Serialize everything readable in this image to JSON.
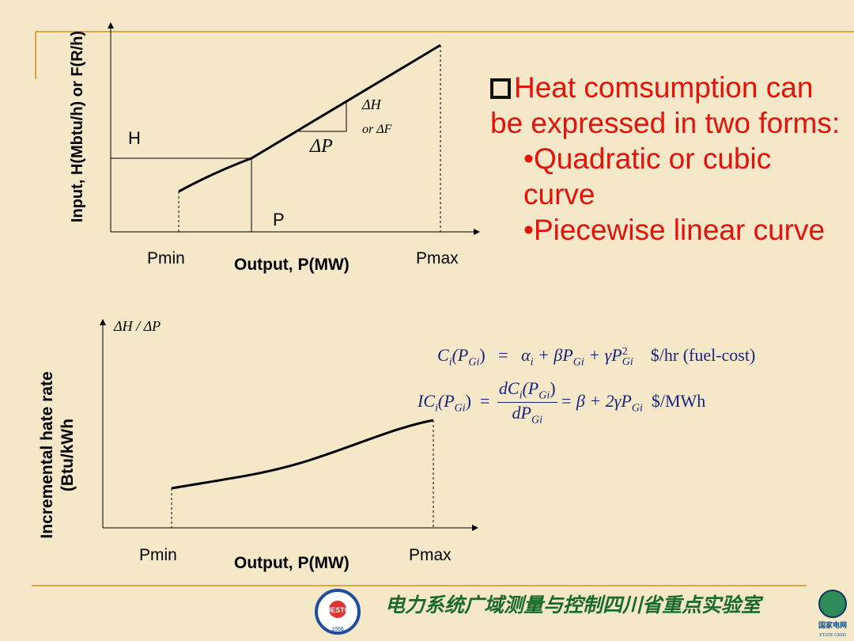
{
  "top_chart": {
    "y_label": "Input, H(Mbtu/h) or F(R/h)",
    "h_label": "H",
    "p_label": "P",
    "dh_label": "ΔH",
    "df_label": "or ΔF",
    "dp_label": "ΔP",
    "pmin": "Pmin",
    "x_label": "Output, P(MW)",
    "pmax": "Pmax"
  },
  "text_block": {
    "heading": "Heat comsumption can be expressed in two forms:",
    "bullets": [
      "•Quadratic or cubic curve",
      "•Piecewise linear curve"
    ]
  },
  "bottom_chart": {
    "y_title": "ΔH / ΔP",
    "y_label_lines": [
      "Incremental hate rate",
      "(Btu/kWh"
    ],
    "pmin": "Pmin",
    "x_label": "Output, P(MW)",
    "pmax": "Pmax"
  },
  "equations": [
    [
      "C",
      "i",
      "(P",
      "Gi",
      ")",
      "=",
      "α",
      "i",
      " + βP",
      "Gi",
      " + γP",
      "2",
      "Gi",
      "$/hr (fuel-cost)"
    ],
    [
      "IC",
      "i",
      "(P",
      "Gi",
      ")",
      "=",
      "dC",
      "i",
      "(P",
      "Gi",
      ")",
      "dP",
      "Gi",
      "= β + 2γP",
      "Gi",
      "$/MWh"
    ]
  ],
  "footer": {
    "lab_name": "电力系统广域测量与控制四川省重点实验室",
    "logo_left": "UESTC",
    "logo_year": "1956",
    "logo_right_cn": "国家电网",
    "logo_right_en": "STATE GRID"
  }
}
